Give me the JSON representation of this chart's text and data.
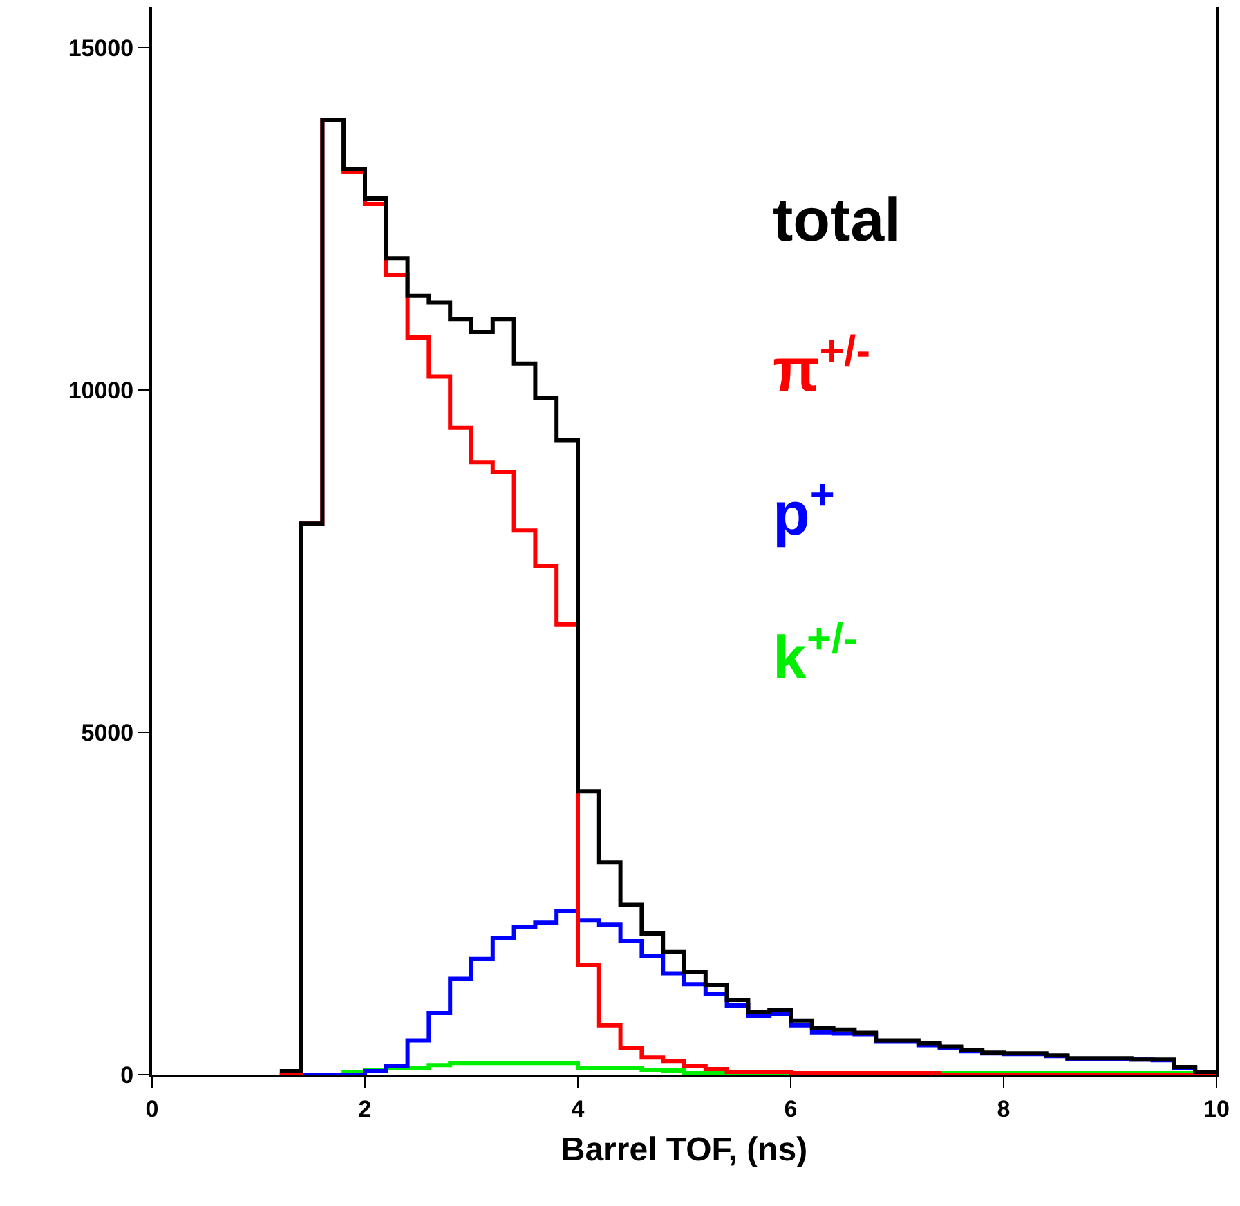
{
  "chart_data": {
    "type": "histogram",
    "xlabel": "Barrel TOF, (ns)",
    "bins": [
      1.2,
      1.4,
      1.6,
      1.8,
      2.0,
      2.2,
      2.4,
      2.6,
      2.8,
      3.0,
      3.2,
      3.4,
      3.6,
      3.8,
      4.0,
      4.2,
      4.4,
      4.6,
      4.8,
      5.0,
      5.2,
      5.4,
      5.6,
      5.8,
      6.0,
      6.2,
      6.4,
      6.6,
      6.8,
      7.0,
      7.2,
      7.4,
      7.6,
      7.8,
      8.0,
      8.2,
      8.4,
      8.6,
      8.8,
      9.0,
      9.2,
      9.4,
      9.6,
      9.8,
      10.0
    ],
    "series": [
      {
        "name": "total",
        "color": "#000000",
        "values": [
          50,
          8050,
          13950,
          13230,
          12800,
          11930,
          11380,
          11280,
          11040,
          10850,
          11040,
          10390,
          9890,
          9270,
          4140,
          3100,
          2480,
          2060,
          1790,
          1500,
          1310,
          1090,
          910,
          950,
          790,
          680,
          660,
          610,
          500,
          500,
          460,
          410,
          360,
          320,
          310,
          310,
          280,
          240,
          240,
          240,
          220,
          220,
          110,
          40
        ]
      },
      {
        "name": "π$^{+/-}$",
        "color": "#ff0000",
        "values": [
          0,
          8050,
          13950,
          13190,
          12720,
          11680,
          10770,
          10200,
          9450,
          8950,
          8810,
          7950,
          7430,
          6580,
          1600,
          720,
          390,
          250,
          200,
          130,
          80,
          40,
          40,
          40,
          20,
          20,
          20,
          20,
          20,
          20,
          20,
          0,
          0,
          0,
          0,
          0,
          0,
          0,
          0,
          0,
          0,
          0,
          0,
          0
        ]
      },
      {
        "name": "p$^{+}$",
        "color": "#0000ff",
        "values": [
          0,
          0,
          0,
          0,
          50,
          130,
          500,
          900,
          1400,
          1690,
          1990,
          2160,
          2220,
          2390,
          2250,
          2190,
          1950,
          1730,
          1480,
          1320,
          1180,
          1010,
          860,
          890,
          720,
          620,
          600,
          590,
          480,
          480,
          430,
          390,
          340,
          310,
          300,
          300,
          270,
          230,
          230,
          230,
          220,
          210,
          90,
          30
        ]
      },
      {
        "name": "k$^{+/-}$",
        "color": "#00ee00",
        "values": [
          0,
          0,
          0,
          30,
          70,
          90,
          100,
          140,
          170,
          170,
          170,
          170,
          170,
          170,
          100,
          90,
          90,
          70,
          60,
          20,
          20,
          20,
          20,
          20,
          20,
          20,
          20,
          20,
          20,
          20,
          20,
          20,
          20,
          20,
          20,
          20,
          20,
          20,
          20,
          20,
          20,
          20,
          20,
          20
        ]
      }
    ],
    "xlim": [
      0,
      10
    ],
    "xticks": [
      0,
      2,
      4,
      6,
      8,
      10
    ],
    "ylim": [
      0,
      15600
    ],
    "yticks": [
      0,
      5000,
      10000,
      15000
    ],
    "legend": "top right"
  }
}
